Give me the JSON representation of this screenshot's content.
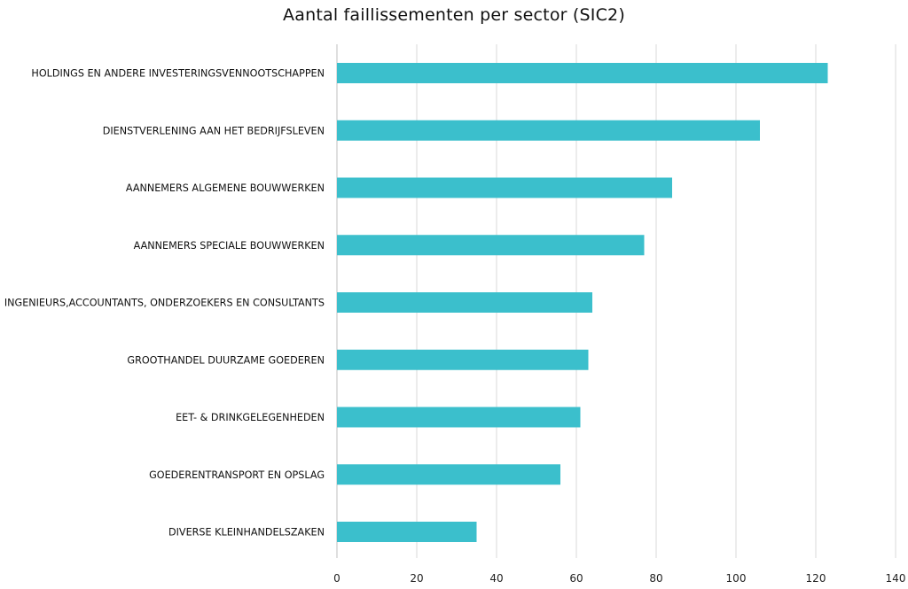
{
  "chart_data": {
    "type": "bar",
    "orientation": "horizontal",
    "title": "Aantal faillissementen per sector (SIC2)",
    "xlabel": "",
    "ylabel": "",
    "categories": [
      "HOLDINGS EN ANDERE INVESTERINGSVENNOOTSCHAPPEN",
      "DIENSTVERLENING AAN HET BEDRIJFSLEVEN",
      "AANNEMERS ALGEMENE BOUWWERKEN",
      "AANNEMERS SPECIALE BOUWWERKEN",
      "INGENIEURS,ACCOUNTANTS, ONDERZOEKERS EN CONSULTANTS",
      "GROOTHANDEL DUURZAME GOEDEREN",
      "EET- & DRINKGELEGENHEDEN",
      "GOEDERENTRANSPORT EN OPSLAG",
      "DIVERSE KLEINHANDELSZAKEN"
    ],
    "values": [
      123,
      106,
      84,
      77,
      64,
      63,
      61,
      56,
      35
    ],
    "xlim": [
      0,
      140
    ],
    "xticks": [
      0,
      20,
      40,
      60,
      80,
      100,
      120,
      140
    ],
    "grid": true,
    "legend": "none",
    "bar_color": "#3bbfcc"
  }
}
